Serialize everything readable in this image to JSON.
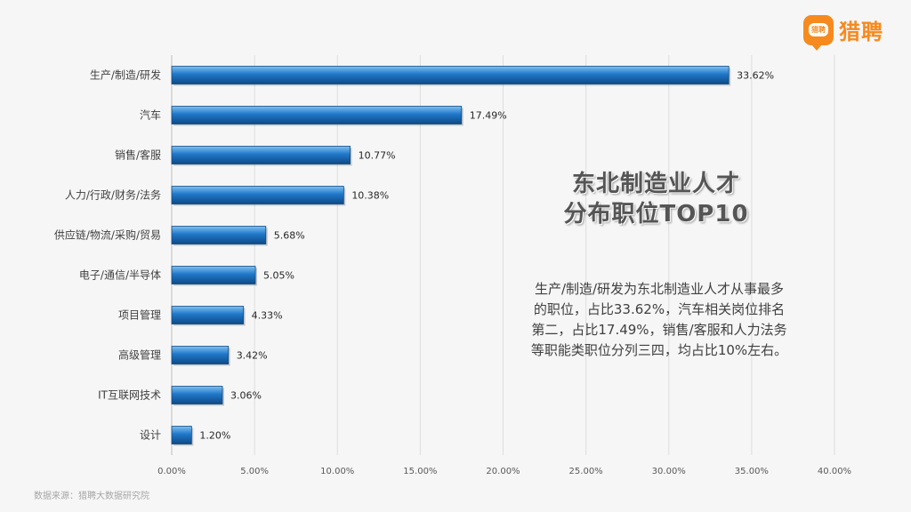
{
  "logo": {
    "badge_text": "猎聘",
    "brand": "猎聘"
  },
  "title_lines": [
    "东北制造业人才",
    "分布职位TOP10"
  ],
  "description": "生产/制造/研发为东北制造业人才从事最多的职位，占比33.62%，汽车相关岗位排名第二，占比17.49%，销售/客服和人力法务等职能类职位分列三四，均占比10%左右。",
  "source": "数据来源：猎聘大数据研究院",
  "colors": {
    "bar": "#1f77c9",
    "bar_dark": "#0f4a85",
    "bar_light": "#7fc1f0",
    "brand": "#f68a1f"
  },
  "chart_data": {
    "type": "bar",
    "orientation": "horizontal",
    "categories": [
      "生产/制造/研发",
      "汽车",
      "销售/客服",
      "人力/行政/财务/法务",
      "供应链/物流/采购/贸易",
      "电子/通信/半导体",
      "项目管理",
      "高级管理",
      "IT互联网技术",
      "设计"
    ],
    "values": [
      33.62,
      17.49,
      10.77,
      10.38,
      5.68,
      5.05,
      4.33,
      3.42,
      3.06,
      1.2
    ],
    "value_labels": [
      "33.62%",
      "17.49%",
      "10.77%",
      "10.38%",
      "5.68%",
      "5.05%",
      "4.33%",
      "3.42%",
      "3.06%",
      "1.20%"
    ],
    "xlim": [
      0,
      40
    ],
    "xticks": [
      "0.00%",
      "5.00%",
      "10.00%",
      "15.00%",
      "20.00%",
      "25.00%",
      "30.00%",
      "35.00%",
      "40.00%"
    ],
    "grid": true
  }
}
